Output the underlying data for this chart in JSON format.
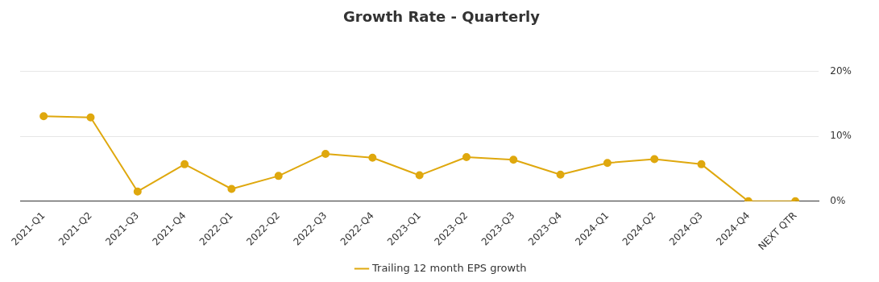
{
  "chart_data": {
    "type": "line",
    "title": "Growth Rate - Quarterly",
    "categories": [
      "2021-Q1",
      "2021-Q2",
      "2021-Q3",
      "2021-Q4",
      "2022-Q1",
      "2022-Q2",
      "2022-Q3",
      "2022-Q4",
      "2023-Q1",
      "2023-Q2",
      "2023-Q3",
      "2023-Q4",
      "2024-Q1",
      "2024-Q2",
      "2024-Q3",
      "2024-Q4",
      "NEXT QTR"
    ],
    "series": [
      {
        "name": "Trailing 12 month EPS growth",
        "color": "#dfa80e",
        "values": [
          13.1,
          12.9,
          1.5,
          5.7,
          1.9,
          3.9,
          7.3,
          6.7,
          4.0,
          6.8,
          6.4,
          4.1,
          5.9,
          6.5,
          5.7,
          0,
          0
        ]
      }
    ],
    "ylim": [
      0,
      20
    ],
    "yticks": [
      {
        "value": 0,
        "label": "0%"
      },
      {
        "value": 10,
        "label": "10%"
      },
      {
        "value": 20,
        "label": "20%"
      }
    ],
    "grid": "y",
    "legend": "bottom",
    "marker": "circle",
    "line_style": "solid"
  }
}
